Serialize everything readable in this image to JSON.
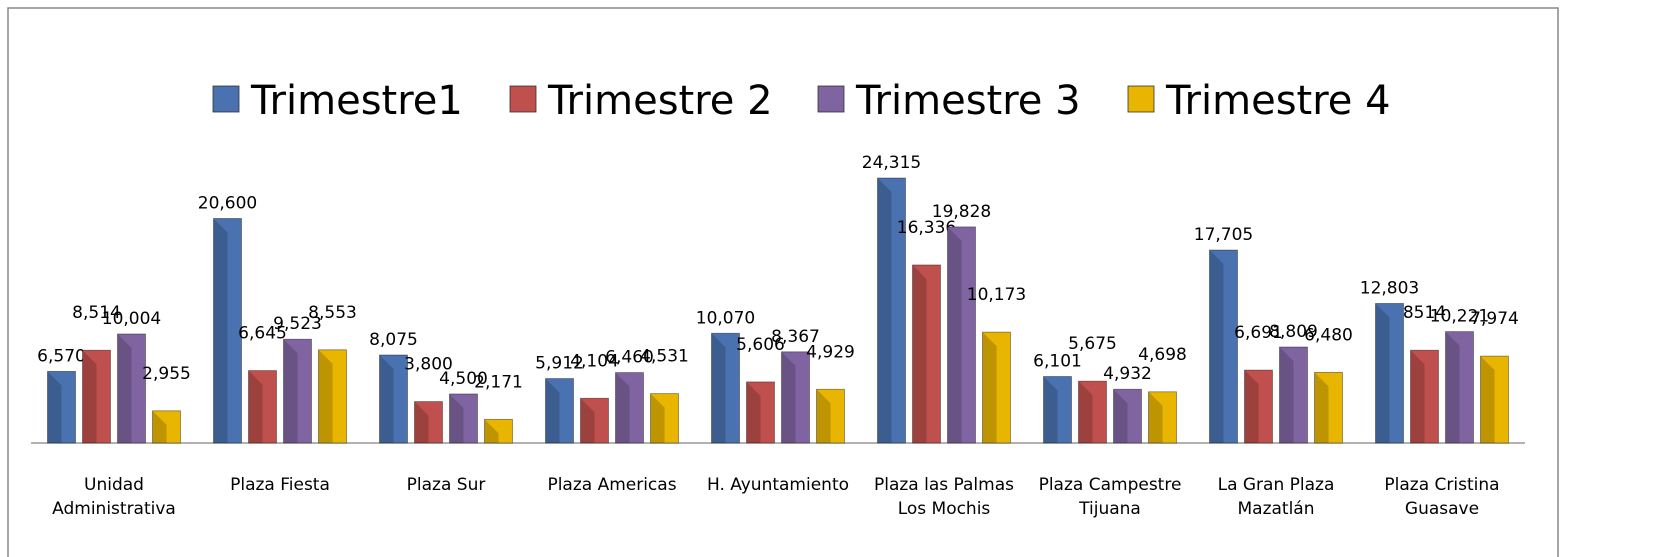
{
  "chart_data": {
    "type": "bar",
    "categories": [
      "Unidad Administrativa",
      "Plaza Fiesta",
      "Plaza Sur",
      "Plaza Americas",
      "H. Ayuntamiento",
      "Plaza las Palmas Los Mochis",
      "Plaza Campestre Tijuana",
      "La Gran Plaza Mazatlán",
      "Plaza Cristina Guasave"
    ],
    "series": [
      {
        "name": "Trimestre1",
        "color": "#4a72b0",
        "values": [
          6570,
          20600,
          8075,
          5912,
          10070,
          24315,
          6101,
          17705,
          12803
        ],
        "value_labels": [
          "6,570",
          "20,600",
          "8,075",
          "5,912",
          "10,070",
          "24,315",
          "6,101",
          "17,705",
          "12,803"
        ]
      },
      {
        "name": "Trimestre 2",
        "color": "#c0504d",
        "values": [
          8514,
          6645,
          3800,
          4104,
          5606,
          16336,
          5675,
          6691,
          8514
        ],
        "value_labels": [
          "8,514",
          "6,645",
          "3,800",
          "4,104",
          "5,606",
          "16,336",
          "5,675",
          "6,691",
          "8514"
        ]
      },
      {
        "name": "Trimestre 3",
        "color": "#8064a2",
        "values": [
          10004,
          9523,
          4500,
          6460,
          8367,
          19828,
          4932,
          8809,
          10221
        ],
        "value_labels": [
          "10,004",
          "9,523",
          "4,500",
          "6,460",
          "8,367",
          "19,828",
          "4,932",
          "8,809",
          "10,221"
        ]
      },
      {
        "name": "Trimestre 4",
        "color": "#e8b500",
        "values": [
          2955,
          8553,
          2171,
          4531,
          4929,
          10173,
          4698,
          6480,
          7974
        ],
        "value_labels": [
          "2,955",
          "8,553",
          "2,171",
          "4,531",
          "4,929",
          "10,173",
          "4,698",
          "6,480",
          "7,974"
        ]
      }
    ],
    "legend": "top"
  }
}
